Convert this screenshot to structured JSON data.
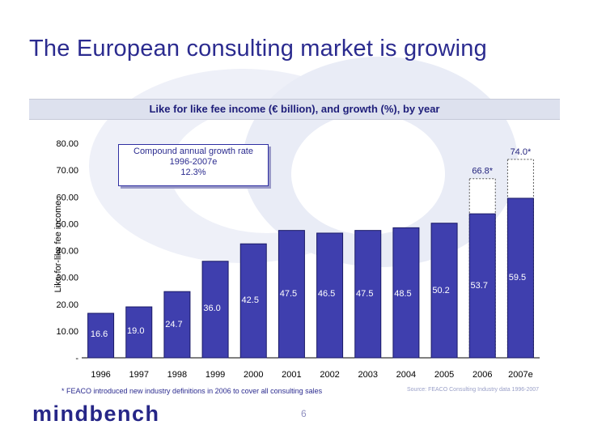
{
  "page": {
    "title": "The European consulting market is growing",
    "subtitle": "Like for like fee income (€ billion), and growth (%), by year",
    "cagr_lines": [
      "Compound annual growth rate",
      "1996-2007e",
      "12.3%"
    ],
    "footnote": "* FEACO introduced new industry definitions in 2006 to cover all consulting sales",
    "source": "Source: FEACO Consulting Industry data 1996-2007",
    "page_number": "6",
    "logo_text": "mindbench"
  },
  "colors": {
    "bar_fill": "#3f3fae",
    "bar_stroke": "#1a1a66",
    "title": "#2b2b8f",
    "watermark": "#e8ebf5"
  },
  "chart_data": {
    "type": "bar",
    "categories": [
      "1996",
      "1997",
      "1998",
      "1999",
      "2000",
      "2001",
      "2002",
      "2003",
      "2004",
      "2005",
      "2006",
      "2007e"
    ],
    "series": [
      {
        "values": [
          16.6,
          19.0,
          24.7,
          36.0,
          42.5,
          47.5,
          46.5,
          47.5,
          48.5,
          50.2,
          53.7,
          59.5
        ]
      }
    ],
    "value_labels": [
      "16.6",
      "19.0",
      "24.7",
      "36.0",
      "42.5",
      "47.5",
      "46.5",
      "47.5",
      "48.5",
      "50.2",
      "53.7",
      "59.5"
    ],
    "extended_totals": [
      {
        "category": "2006",
        "value": 66.8,
        "label": "66.8*"
      },
      {
        "category": "2007e",
        "value": 74.0,
        "label": "74.0*"
      }
    ],
    "ylabel": "Like-for-like fee income",
    "ylim": [
      0,
      80
    ],
    "yticks": [
      0,
      10,
      20,
      30,
      40,
      50,
      60,
      70,
      80
    ],
    "ytick_labels": [
      "-",
      "10.00",
      "20.00",
      "30.00",
      "40.00",
      "50.00",
      "60.00",
      "70.00",
      "80.00"
    ],
    "grid": false
  }
}
